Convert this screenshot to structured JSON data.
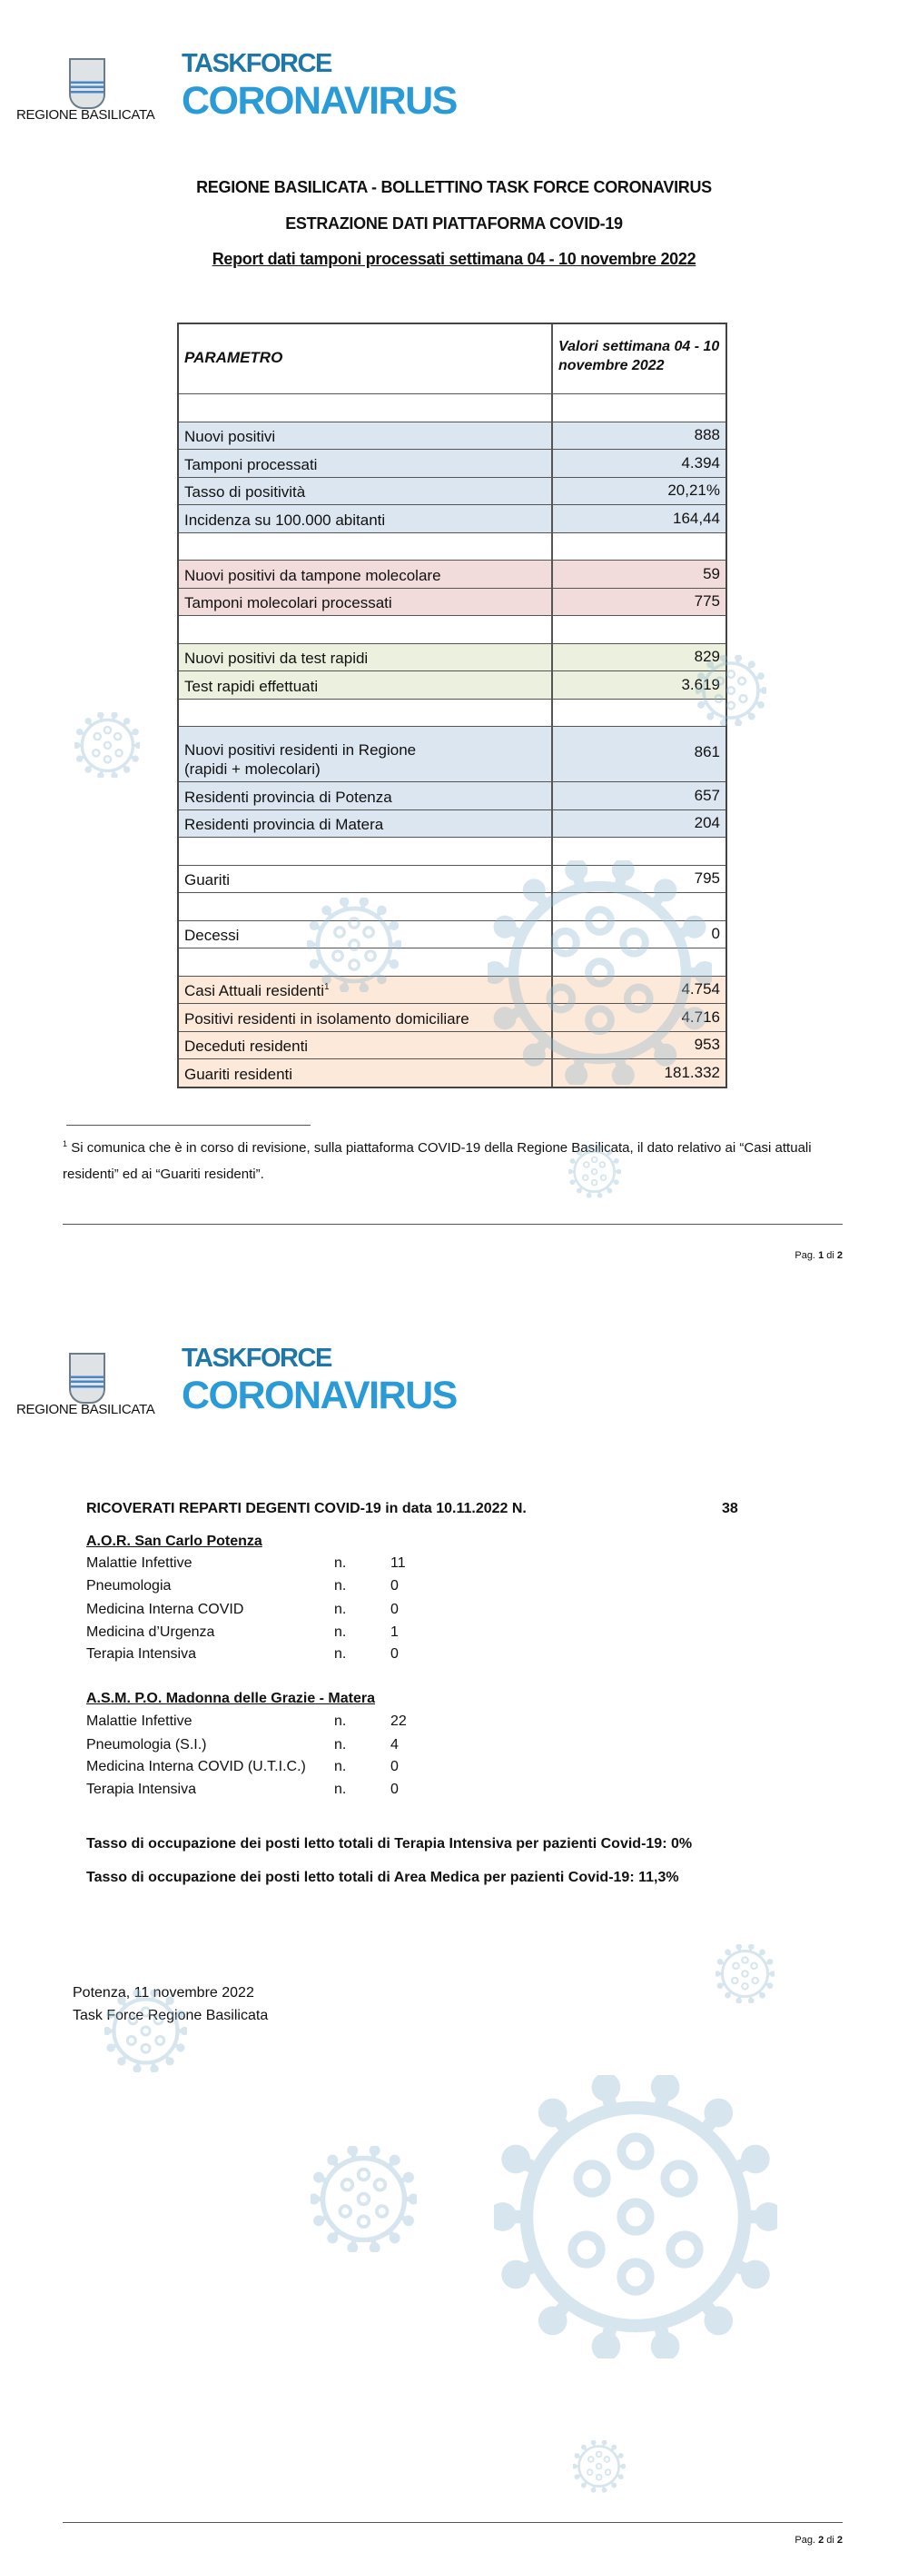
{
  "page1": {
    "logo": {
      "regione": "REGIONE BASILICATA",
      "taskforce": "TASKFORCE",
      "coronavirus": "CORONAVIRUS"
    },
    "titles": [
      "REGIONE BASILICATA - BOLLETTINO TASK FORCE CORONAVIRUS",
      "ESTRAZIONE DATI PIATTAFORMA COVID-19",
      "Report dati tamponi processati settimana 04 - 10 novembre 2022"
    ],
    "table": {
      "header": {
        "param": "PARAMETRO",
        "value": "Valori settimana 04 - 10 novembre 2022"
      },
      "colors": {
        "blue": "#dce6f1",
        "pink": "#f2dcdb",
        "green": "#ebf1de",
        "orange": "#fde9d9"
      },
      "sections": [
        {
          "color": "blue",
          "rows": [
            {
              "label": "Nuovi positivi",
              "value": "888"
            },
            {
              "label": "Tamponi processati",
              "value": "4.394"
            },
            {
              "label": "Tasso di positività",
              "value": "20,21%"
            },
            {
              "label": "Incidenza su 100.000 abitanti",
              "value": "164,44"
            }
          ]
        },
        {
          "color": "pink",
          "rows": [
            {
              "label": "Nuovi positivi da tampone molecolare",
              "value": "59"
            },
            {
              "label": "Tamponi molecolari processati",
              "value": "775"
            }
          ]
        },
        {
          "color": "green",
          "rows": [
            {
              "label": "Nuovi positivi da test rapidi",
              "value": "829"
            },
            {
              "label": "Test rapidi effettuati",
              "value": "3.619"
            }
          ]
        },
        {
          "color": "blue",
          "rows": [
            {
              "label": "Nuovi positivi residenti in Regione",
              "label2": "(rapidi + molecolari)",
              "value": "861"
            },
            {
              "label": "Residenti provincia di Potenza",
              "value": "657"
            },
            {
              "label": "Residenti provincia di Matera",
              "value": "204"
            }
          ]
        },
        {
          "color": "white",
          "rows": [
            {
              "label": "Guariti",
              "value": "795"
            }
          ]
        },
        {
          "color": "white",
          "rows": [
            {
              "label": "Decessi",
              "value": "0"
            }
          ]
        },
        {
          "color": "orange",
          "rows": [
            {
              "label": "Casi Attuali residenti",
              "sup": "1",
              "value": "4.754"
            },
            {
              "label": "Positivi residenti in isolamento domiciliare",
              "value": "4.716"
            },
            {
              "label": "Deceduti residenti",
              "value": "953"
            },
            {
              "label": "Guariti residenti",
              "value": "181.332"
            }
          ]
        }
      ]
    },
    "footnote": {
      "marker": "1",
      "line1": "Si comunica che è in corso di revisione, sulla piattaforma COVID-19 della Regione Basilicata, il dato relativo ai “Casi attuali",
      "line2": "residenti” ed ai “Guariti residenti”."
    },
    "footer": {
      "prefix": "Pag.",
      "page": "1",
      "of": "di",
      "total": "2"
    }
  },
  "page2": {
    "logo": {
      "regione": "REGIONE BASILICATA",
      "taskforce": "TASKFORCE",
      "coronavirus": "CORONAVIRUS"
    },
    "ricoverati": {
      "label": "RICOVERATI REPARTI DEGENTI COVID-19 in data 10.11.2022 N.",
      "total": "38"
    },
    "hospitals": [
      {
        "name": "A.O.R. San Carlo Potenza",
        "wards": [
          {
            "name": "Malattie Infettive",
            "n": "n.",
            "value": "11"
          },
          {
            "name": "Pneumologia",
            "n": "n.",
            "value": "0"
          },
          {
            "name": "Medicina Interna COVID",
            "n": "n.",
            "value": "0"
          },
          {
            "name": "Medicina d’Urgenza",
            "n": "n.",
            "value": "1"
          },
          {
            "name": "Terapia Intensiva",
            "n": "n.",
            "value": "0"
          }
        ]
      },
      {
        "name": "A.S.M. P.O. Madonna delle Grazie - Matera",
        "wards": [
          {
            "name": "Malattie Infettive",
            "n": "n.",
            "value": "22"
          },
          {
            "name": "Pneumologia (S.I.)",
            "n": "n.",
            "value": "4"
          },
          {
            "name": "Medicina Interna COVID (U.T.I.C.)",
            "n": "n.",
            "value": "0"
          },
          {
            "name": "Terapia Intensiva",
            "n": "n.",
            "value": "0"
          }
        ]
      }
    ],
    "occupancy": [
      "Tasso di occupazione dei posti letto totali di Terapia Intensiva per pazienti Covid-19: 0%",
      "Tasso di occupazione dei posti letto totali di Area Medica per pazienti Covid-19: 11,3%"
    ],
    "signature": {
      "place_date": "Potenza, 11 novembre 2022",
      "signer": "Task Force Regione Basilicata"
    },
    "footer": {
      "prefix": "Pag.",
      "page": "2",
      "of": "di",
      "total": "2"
    }
  }
}
